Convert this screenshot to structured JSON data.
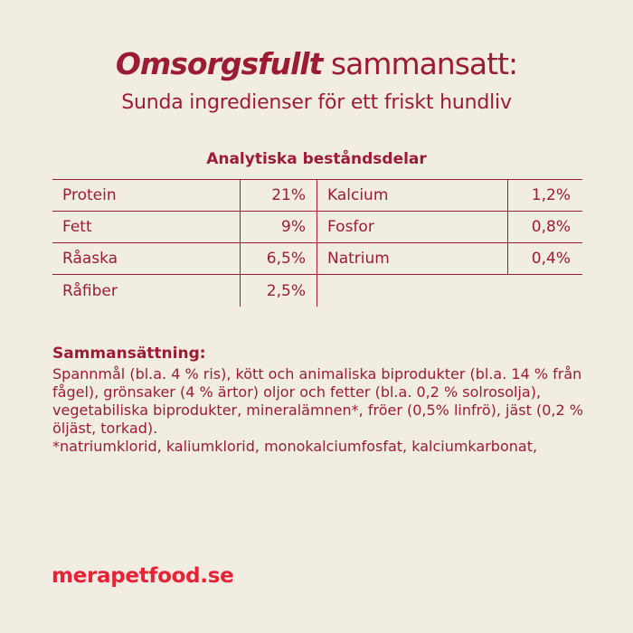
{
  "palette": {
    "background": "#f2ede3",
    "text_red": "#9b1c33",
    "accent_red": "#e82338"
  },
  "header": {
    "title_emphasis": "Omsorgsfullt",
    "title_rest": " sammansatt:",
    "subtitle": "Sunda ingredienser för ett friskt hundliv"
  },
  "analytical": {
    "heading": "Analytiska beståndsdelar",
    "left_rows": [
      {
        "label": "Protein",
        "value": "21%"
      },
      {
        "label": "Fett",
        "value": "9%"
      },
      {
        "label": "Råaska",
        "value": "6,5%"
      },
      {
        "label": "Råfiber",
        "value": "2,5%"
      }
    ],
    "right_rows": [
      {
        "label": "Kalcium",
        "value": "1,2%"
      },
      {
        "label": "Fosfor",
        "value": "0,8%"
      },
      {
        "label": "Natrium",
        "value": "0,4%"
      }
    ]
  },
  "composition": {
    "heading": "Sammansättning:",
    "lines": [
      "Spannmål (bl.a. 4 % ris), kött och animaliska biprodukter (bl.a. 14 % från",
      "fågel), grönsaker (4 % ärtor) oljor och fetter (bl.a. 0,2 % solrosolja),",
      "vegetabiliska biprodukter, mineralämnen*, fröer (0,5% linfrö), jäst (0,2 %",
      "öljäst, torkad).",
      "*natriumklorid, kaliumklorid, monokalciumfosfat, kalciumkarbonat,"
    ]
  },
  "footer": {
    "website": "merapetfood.se"
  }
}
